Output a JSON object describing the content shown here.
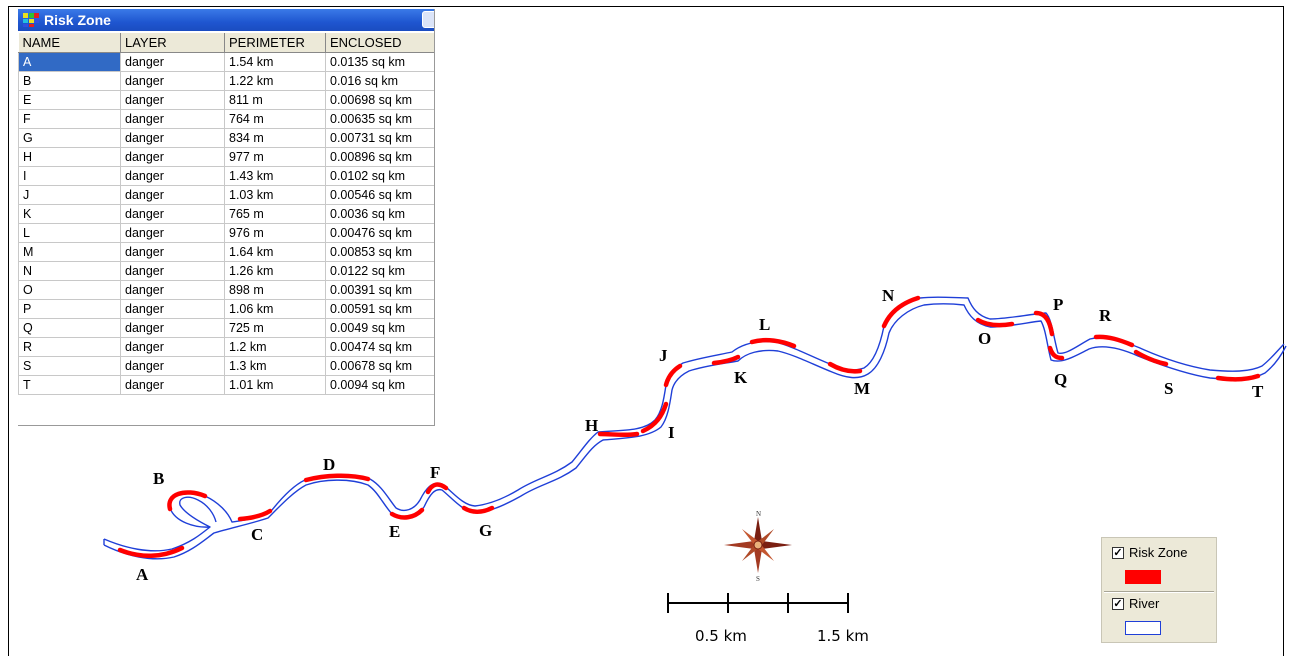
{
  "window": {
    "title": "Risk Zone"
  },
  "table": {
    "columns": [
      "NAME",
      "LAYER",
      "PERIMETER",
      "ENCLOSED"
    ],
    "rows": [
      [
        "A",
        "danger",
        "1.54 km",
        "0.0135 sq km"
      ],
      [
        "B",
        "danger",
        "1.22 km",
        "0.016 sq km"
      ],
      [
        "E",
        "danger",
        "811 m",
        "0.00698 sq km"
      ],
      [
        "F",
        "danger",
        "764 m",
        "0.00635 sq km"
      ],
      [
        "G",
        "danger",
        "834 m",
        "0.00731 sq km"
      ],
      [
        "H",
        "danger",
        "977 m",
        "0.00896 sq km"
      ],
      [
        "I",
        "danger",
        "1.43 km",
        "0.0102 sq km"
      ],
      [
        "J",
        "danger",
        "1.03 km",
        "0.00546 sq km"
      ],
      [
        "K",
        "danger",
        "765 m",
        "0.0036 sq km"
      ],
      [
        "L",
        "danger",
        "976 m",
        "0.00476 sq km"
      ],
      [
        "M",
        "danger",
        "1.64 km",
        "0.00853 sq km"
      ],
      [
        "N",
        "danger",
        "1.26 km",
        "0.0122 sq km"
      ],
      [
        "O",
        "danger",
        "898 m",
        "0.00391 sq km"
      ],
      [
        "P",
        "danger",
        "1.06 km",
        "0.00591 sq km"
      ],
      [
        "Q",
        "danger",
        "725 m",
        "0.0049 sq km"
      ],
      [
        "R",
        "danger",
        "1.2 km",
        "0.00474 sq km"
      ],
      [
        "S",
        "danger",
        "1.3 km",
        "0.00678 sq km"
      ],
      [
        "T",
        "danger",
        "1.01 km",
        "0.0094 sq km"
      ]
    ],
    "selected_row": 0
  },
  "map": {
    "zone_labels": [
      "A",
      "B",
      "C",
      "D",
      "E",
      "F",
      "G",
      "H",
      "I",
      "J",
      "K",
      "L",
      "M",
      "N",
      "O",
      "P",
      "Q",
      "R",
      "S",
      "T"
    ],
    "north_label": "N",
    "south_label": "S",
    "scale_labels": [
      "0.5 km",
      "1.5 km"
    ]
  },
  "legend": {
    "items": [
      {
        "label": "Risk Zone",
        "checked": true,
        "check_glyph": "✓",
        "color": "#ff0000"
      },
      {
        "label": "River",
        "checked": true,
        "check_glyph": "✓",
        "color": "#1f3fd8"
      }
    ]
  },
  "colors": {
    "river": "#1f3fd8",
    "risk_zone": "#ff0000",
    "title_bar": "#1f56d0",
    "selection": "#316ac5"
  }
}
